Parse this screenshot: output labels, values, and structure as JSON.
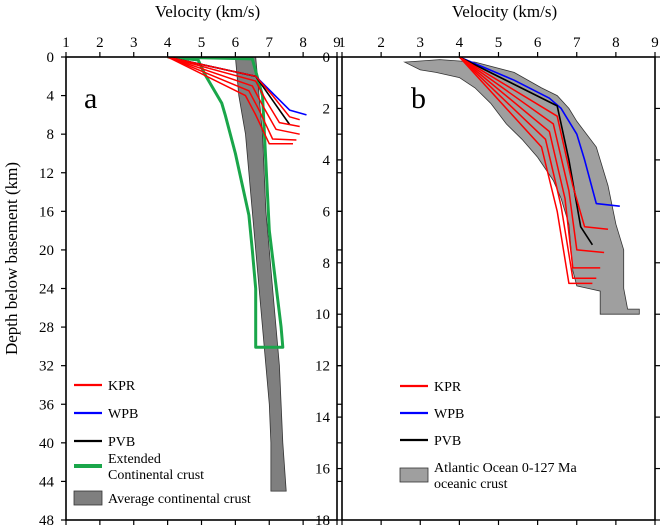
{
  "chart_data": [
    {
      "panel_label": "a",
      "type": "line",
      "title": "Velocity (km/s)",
      "xlabel": "Velocity (km/s)",
      "ylabel": "Depth below basement  (km)",
      "xlim": [
        1,
        9
      ],
      "ylim": [
        0,
        48
      ],
      "y_inverted": true,
      "x_ticks": [
        "1",
        "2",
        "3",
        "4",
        "5",
        "6",
        "7",
        "8",
        "9"
      ],
      "y_ticks": [
        "0",
        "4",
        "8",
        "12",
        "16",
        "20",
        "24",
        "28",
        "32",
        "36",
        "40",
        "44",
        "48"
      ],
      "x_axis_position": "top",
      "grid": false,
      "legend": {
        "position": "bottom-left",
        "entries": [
          {
            "label": "KPR",
            "color": "#ff0000",
            "kind": "line"
          },
          {
            "label": "WPB",
            "color": "#0000ff",
            "kind": "line"
          },
          {
            "label": "PVB",
            "color": "#000000",
            "kind": "line"
          },
          {
            "label": "Extended Continental crust",
            "lines": [
              "Extended",
              "Continental crust"
            ],
            "color": "#1aa64a",
            "kind": "line"
          },
          {
            "label": "Average continental crust",
            "lines": [
              "Average continental crust"
            ],
            "color": "#7f7f7f",
            "kind": "area"
          }
        ]
      },
      "series": [
        {
          "name": "Average continental crust",
          "kind": "band",
          "color": "#7f7f7f",
          "left": [
            [
              6.0,
              0
            ],
            [
              6.1,
              4
            ],
            [
              6.3,
              8
            ],
            [
              6.4,
              12
            ],
            [
              6.5,
              16
            ],
            [
              6.6,
              20
            ],
            [
              6.7,
              24
            ],
            [
              6.8,
              28
            ],
            [
              6.9,
              32
            ],
            [
              7.0,
              36
            ],
            [
              7.05,
              40
            ],
            [
              7.05,
              45
            ]
          ],
          "right": [
            [
              6.6,
              0
            ],
            [
              6.7,
              4
            ],
            [
              6.8,
              8
            ],
            [
              6.85,
              12
            ],
            [
              6.9,
              16
            ],
            [
              7.0,
              20
            ],
            [
              7.1,
              24
            ],
            [
              7.2,
              28
            ],
            [
              7.3,
              32
            ],
            [
              7.35,
              36
            ],
            [
              7.4,
              40
            ],
            [
              7.5,
              45
            ]
          ]
        },
        {
          "name": "Extended Continental crust",
          "kind": "polyline",
          "color": "#1aa64a",
          "points": [
            [
              4.0,
              0
            ],
            [
              4.9,
              0.3
            ],
            [
              5.1,
              1.8
            ],
            [
              5.6,
              4.8
            ],
            [
              5.7,
              6
            ],
            [
              6.0,
              10
            ],
            [
              6.4,
              16.4
            ],
            [
              6.5,
              20
            ],
            [
              6.6,
              24
            ],
            [
              6.6,
              30.1
            ],
            [
              7.4,
              30.1
            ],
            [
              7.35,
              28
            ],
            [
              7.0,
              18
            ],
            [
              6.8,
              4
            ],
            [
              6.5,
              0.2
            ],
            [
              4.0,
              0
            ]
          ]
        },
        {
          "name": "WPB",
          "kind": "polyline",
          "color": "#0000ff",
          "points": [
            [
              4.0,
              0
            ],
            [
              6.6,
              2
            ],
            [
              7.6,
              5.5
            ],
            [
              8.1,
              6
            ]
          ]
        },
        {
          "name": "PVB",
          "kind": "polyline",
          "color": "#000000",
          "points": [
            [
              4.0,
              0
            ],
            [
              6.6,
              2
            ],
            [
              7.0,
              4
            ],
            [
              7.6,
              7
            ]
          ]
        },
        {
          "name": "KPR",
          "kind": "multi",
          "color": "#ff0000",
          "lines": [
            [
              [
                4.0,
                0
              ],
              [
                6.6,
                2
              ],
              [
                7.1,
                4
              ],
              [
                7.6,
                6.2
              ],
              [
                7.9,
                6.5
              ]
            ],
            [
              [
                4.0,
                0
              ],
              [
                6.6,
                2.5
              ],
              [
                6.9,
                4.5
              ],
              [
                7.3,
                6.8
              ],
              [
                7.9,
                7.2
              ]
            ],
            [
              [
                4.0,
                0
              ],
              [
                6.5,
                3
              ],
              [
                6.8,
                5
              ],
              [
                7.2,
                7.5
              ],
              [
                7.9,
                8
              ]
            ],
            [
              [
                4.0,
                0
              ],
              [
                6.4,
                3.5
              ],
              [
                6.7,
                5.5
              ],
              [
                7.1,
                8.5
              ],
              [
                7.8,
                8.6
              ]
            ],
            [
              [
                4.0,
                0
              ],
              [
                6.3,
                4
              ],
              [
                6.6,
                6
              ],
              [
                7.0,
                9
              ],
              [
                7.7,
                9
              ]
            ]
          ]
        }
      ]
    },
    {
      "panel_label": "b",
      "type": "line",
      "title": "Velocity (km/s)",
      "xlabel": "Velocity (km/s)",
      "ylabel": "",
      "xlim": [
        1,
        9
      ],
      "ylim": [
        0,
        18
      ],
      "y_inverted": true,
      "x_ticks": [
        "1",
        "2",
        "3",
        "4",
        "5",
        "6",
        "7",
        "8",
        "9"
      ],
      "y_ticks": [
        "0",
        "2",
        "4",
        "6",
        "8",
        "10",
        "12",
        "14",
        "16",
        "18"
      ],
      "x_axis_position": "top",
      "grid": false,
      "legend": {
        "position": "bottom-left",
        "entries": [
          {
            "label": "KPR",
            "color": "#ff0000",
            "kind": "line"
          },
          {
            "label": "WPB",
            "color": "#0000ff",
            "kind": "line"
          },
          {
            "label": "PVB",
            "color": "#000000",
            "kind": "line"
          },
          {
            "label": "Atlantic Ocean 0-127 Ma oceanic crust",
            "lines": [
              "Atlantic Ocean 0-127 Ma",
              "oceanic crust"
            ],
            "color": "#9f9f9f",
            "kind": "area"
          }
        ]
      },
      "series": [
        {
          "name": "Atlantic Ocean 0-127 Ma oceanic crust",
          "kind": "polygon",
          "color": "#9f9f9f",
          "points": [
            [
              2.6,
              0.2
            ],
            [
              3.5,
              0.1
            ],
            [
              4.4,
              0.2
            ],
            [
              5.4,
              0.6
            ],
            [
              6.1,
              1.2
            ],
            [
              6.5,
              1.5
            ],
            [
              6.8,
              2
            ],
            [
              7.0,
              2.5
            ],
            [
              7.5,
              3.5
            ],
            [
              7.8,
              5
            ],
            [
              8.0,
              6.5
            ],
            [
              8.2,
              7.5
            ],
            [
              8.2,
              9
            ],
            [
              8.3,
              9.8
            ],
            [
              8.6,
              9.8
            ],
            [
              8.6,
              10
            ],
            [
              7.6,
              10
            ],
            [
              7.6,
              9.1
            ],
            [
              7.3,
              9
            ],
            [
              7.0,
              8.9
            ],
            [
              6.9,
              8.3
            ],
            [
              6.8,
              6.5
            ],
            [
              6.6,
              5.5
            ],
            [
              6.4,
              4.8
            ],
            [
              6.0,
              3.9
            ],
            [
              5.6,
              3.2
            ],
            [
              5.2,
              2.6
            ],
            [
              4.8,
              1.8
            ],
            [
              4.4,
              1.2
            ],
            [
              4.0,
              0.8
            ],
            [
              3.4,
              0.6
            ],
            [
              3.0,
              0.5
            ],
            [
              2.6,
              0.2
            ]
          ]
        },
        {
          "name": "WPB",
          "kind": "polyline",
          "color": "#0000ff",
          "points": [
            [
              4.0,
              0
            ],
            [
              5.4,
              0.9
            ],
            [
              6.3,
              1.6
            ],
            [
              6.6,
              2
            ],
            [
              7.0,
              3
            ],
            [
              7.2,
              4
            ],
            [
              7.5,
              5.7
            ],
            [
              8.1,
              5.8
            ]
          ]
        },
        {
          "name": "PVB",
          "kind": "polyline",
          "color": "#000000",
          "points": [
            [
              4.0,
              0
            ],
            [
              6.5,
              1.9
            ],
            [
              6.8,
              4
            ],
            [
              7.1,
              6.6
            ],
            [
              7.4,
              7.3
            ]
          ]
        },
        {
          "name": "KPR",
          "kind": "multi",
          "color": "#ff0000",
          "lines": [
            [
              [
                4.0,
                0
              ],
              [
                6.5,
                2.3
              ],
              [
                6.9,
                5
              ],
              [
                7.2,
                6.6
              ],
              [
                7.8,
                6.7
              ]
            ],
            [
              [
                4.0,
                0
              ],
              [
                6.4,
                2.6
              ],
              [
                6.8,
                5.2
              ],
              [
                7.0,
                7.5
              ],
              [
                7.7,
                7.6
              ]
            ],
            [
              [
                4.0,
                0
              ],
              [
                6.3,
                2.9
              ],
              [
                6.7,
                5.5
              ],
              [
                6.9,
                8.2
              ],
              [
                7.6,
                8.2
              ]
            ],
            [
              [
                4.0,
                0
              ],
              [
                6.2,
                3.2
              ],
              [
                6.6,
                5.8
              ],
              [
                6.9,
                8.6
              ],
              [
                7.5,
                8.6
              ]
            ],
            [
              [
                4.0,
                0
              ],
              [
                6.1,
                3.5
              ],
              [
                6.5,
                6.0
              ],
              [
                6.8,
                8.8
              ],
              [
                7.4,
                8.8
              ]
            ]
          ]
        }
      ]
    }
  ]
}
